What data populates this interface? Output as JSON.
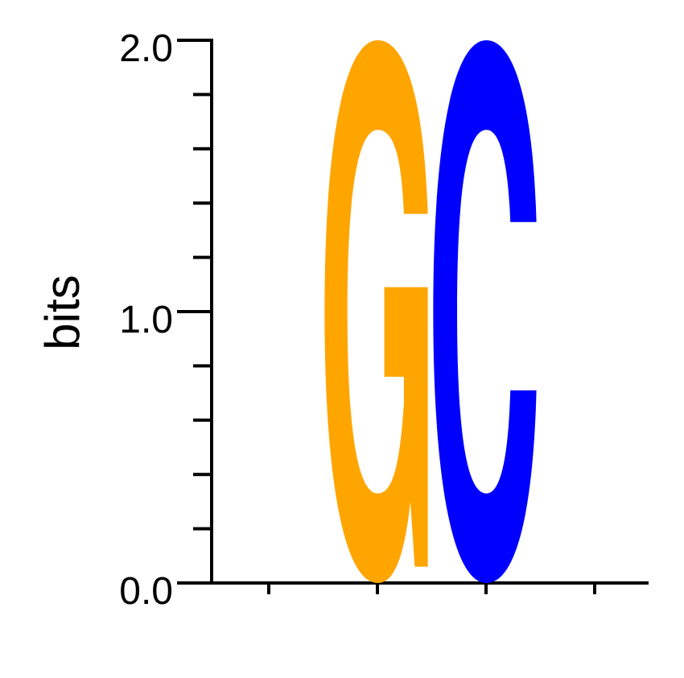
{
  "chart_data": {
    "type": "sequence-logo",
    "ylabel": "bits",
    "ylim": [
      0,
      2.0
    ],
    "y_ticks": [
      {
        "value": 0.0,
        "label": "0.0"
      },
      {
        "value": 1.0,
        "label": "1.0"
      },
      {
        "value": 2.0,
        "label": "2.0"
      }
    ],
    "y_minor_step": 0.2,
    "positions": [
      {
        "index": 1,
        "letters": [
          {
            "letter": "G",
            "height": 2.0,
            "color": "#FFA500"
          }
        ]
      },
      {
        "index": 2,
        "letters": [
          {
            "letter": "C",
            "height": 2.0,
            "color": "#0000FF"
          }
        ]
      }
    ],
    "x_tick_count": 4
  }
}
